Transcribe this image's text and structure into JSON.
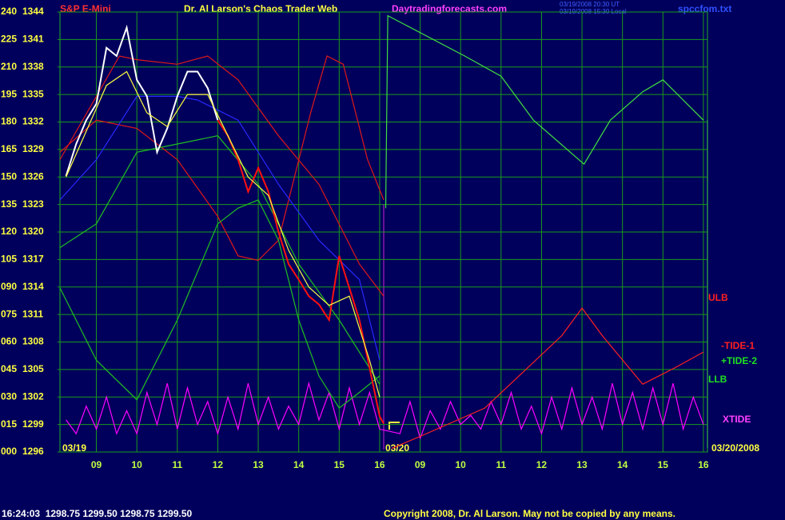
{
  "chart_data": {
    "type": "line",
    "symbol": "S&P E-Mini",
    "title": "Dr. Al Larson's Chaos Trader Web",
    "website": "Daytradingforecasts.com",
    "timestamps": [
      "03/19/2008 20:30 UT",
      "03/19/2008 15:30 Local"
    ],
    "filename": "spccfom.txt",
    "date_labels": [
      "03/19",
      "03/20",
      "03/20/2008"
    ],
    "quote": "16:24:03  1298.75 1299.50 1298.75 1299.50",
    "copyright": "Copyright 2008, Dr. Al Larson. May not be copied by any means.",
    "annotations": [
      {
        "text": "ULB",
        "color": "#ff2020"
      },
      {
        "text": "-TIDE-1",
        "color": "#ff2020"
      },
      {
        "text": "+TIDE-2",
        "color": "#20e020"
      },
      {
        "text": "LLB",
        "color": "#20e020"
      },
      {
        "text": "XTIDE",
        "color": "#ff40ff"
      }
    ],
    "xlim": [
      8.1,
      24.1
    ],
    "xticks": [
      {
        "value": 9,
        "label": "09"
      },
      10,
      11,
      12,
      13,
      14,
      15,
      16,
      {
        "value": 17,
        "label": "09"
      },
      {
        "value": 18,
        "label": "10"
      },
      {
        "value": 19,
        "label": "11"
      },
      {
        "value": 20,
        "label": "12"
      },
      {
        "value": 21,
        "label": "13"
      },
      {
        "value": 22,
        "label": "14"
      },
      {
        "value": 23,
        "label": "15"
      },
      {
        "value": 24,
        "label": "16"
      }
    ],
    "ylim": [
      1296,
      1344
    ],
    "yticks": [
      1296,
      1299,
      1302,
      1305,
      1308,
      1311,
      1314,
      1317,
      1320,
      1323,
      1326,
      1329,
      1332,
      1335,
      1338,
      1341,
      1344
    ],
    "y2lim": [
      0,
      240
    ],
    "y2ticks": [
      {
        "value": 0,
        "label": "000"
      },
      {
        "value": 15,
        "label": "015"
      },
      {
        "value": 30,
        "label": "030"
      },
      {
        "value": 45,
        "label": "045"
      },
      {
        "value": 60,
        "label": "060"
      },
      {
        "value": 75,
        "label": "075"
      },
      {
        "value": 90,
        "label": "090"
      },
      105,
      120,
      135,
      150,
      165,
      180,
      195,
      210,
      225,
      240
    ],
    "grid": true,
    "series": [
      {
        "color": "#ff00ff",
        "x": [
          8.25,
          8.5,
          8.75,
          9,
          9.25,
          9.5,
          9.75,
          10,
          10.25,
          10.5,
          10.75,
          11,
          11.25,
          11.5,
          11.75,
          12,
          12.25,
          12.5,
          12.75,
          13,
          13.25,
          13.5,
          13.75,
          14,
          14.25,
          14.5,
          14.75,
          15,
          15.25,
          15.5,
          15.75,
          16,
          16.5,
          16.75,
          17,
          17.25,
          17.5,
          17.75,
          18,
          18.25,
          18.5,
          18.75,
          19,
          19.25,
          19.5,
          19.75,
          20,
          20.25,
          20.5,
          20.75,
          21,
          21.25,
          21.5,
          21.75,
          22,
          22.25,
          22.5,
          22.75,
          23,
          23.25,
          23.5,
          23.75,
          24
        ],
        "values": [
          1299.5,
          1298,
          1301,
          1298.5,
          1302,
          1298,
          1300.5,
          1298,
          1302.5,
          1299,
          1303.5,
          1298.5,
          1303,
          1299,
          1301.5,
          1298,
          1302,
          1298.5,
          1303.5,
          1299,
          1302,
          1298.5,
          1301,
          1299,
          1303.5,
          1299.5,
          1302.5,
          1298.5,
          1303,
          1299,
          1302.5,
          1298.5,
          1298,
          1301.5,
          1297.5,
          1300.5,
          1298.5,
          1301.5,
          1299,
          1300,
          1298.5,
          1301.5,
          1299,
          1302.5,
          1298.5,
          1301,
          1298,
          1302,
          1298.5,
          1303,
          1299,
          1302,
          1298.5,
          1303.5,
          1299,
          1302.5,
          1298.5,
          1303,
          1299,
          1303.5,
          1298.5,
          1302,
          1299
        ]
      },
      {
        "color": "#e01818",
        "x": [
          8.1,
          9,
          9.57,
          10,
          11,
          11.75,
          12.5,
          13.5,
          14.5,
          15.5,
          16.1
        ],
        "values": [
          1327.9,
          1334.8,
          1339.2,
          1338.8,
          1338.3,
          1339.2,
          1336.6,
          1330.5,
          1325.2,
          1316.5,
          1313.0
        ]
      },
      {
        "color": "#e01818",
        "x": [
          8.1,
          9,
          10,
          11,
          12,
          12.5,
          13,
          13.5,
          14.3,
          14.7,
          15.1,
          15.7,
          16.1
        ],
        "values": [
          1328.7,
          1332.2,
          1331.3,
          1327.9,
          1321.7,
          1317.4,
          1316.9,
          1319.1,
          1333.1,
          1339.2,
          1338.3,
          1327.9,
          1323.5
        ]
      },
      {
        "color": "#20c020",
        "x": [
          8.1,
          9,
          10,
          11,
          12,
          13,
          14,
          15,
          16
        ],
        "values": [
          1318.3,
          1320.9,
          1328.7,
          1329.6,
          1330.5,
          1325.2,
          1316.5,
          1310.4,
          1303.4
        ]
      },
      {
        "color": "#20c020",
        "x": [
          8.1,
          9,
          10,
          11,
          12,
          12.5,
          13,
          13.5,
          14,
          14.5,
          15,
          15.5,
          16
        ],
        "values": [
          1313.9,
          1306.0,
          1301.7,
          1310.4,
          1320.9,
          1322.6,
          1323.5,
          1319.1,
          1310.4,
          1304.3,
          1300.8,
          1302.5,
          1304.3
        ]
      },
      {
        "color": "#2828ff",
        "x": [
          8.1,
          9,
          10,
          11,
          11.5,
          12.5,
          13.5,
          14.5,
          15.5,
          16
        ],
        "values": [
          1323.5,
          1327.9,
          1334.8,
          1334.8,
          1334.4,
          1332.2,
          1325.2,
          1319.1,
          1314.8,
          1306.0
        ]
      },
      {
        "color": "#ffffff",
        "x": [
          8.25,
          8.5,
          8.75,
          9,
          9.25,
          9.5,
          9.75,
          10,
          10.25,
          10.5,
          10.75,
          11,
          11.25,
          11.5,
          11.75,
          12
        ],
        "values": [
          1326.1,
          1329.6,
          1332.2,
          1334.0,
          1340.1,
          1339.2,
          1342.3,
          1336.6,
          1334.8,
          1328.7,
          1331.3,
          1334.8,
          1337.5,
          1337.5,
          1335.7,
          1332.2
        ]
      },
      {
        "color": "#ff1010",
        "x": [
          12,
          12.25,
          12.5,
          12.75,
          13,
          13.25,
          13.5,
          13.75,
          14,
          14.25,
          14.5,
          14.75,
          15,
          15.25,
          15.5,
          15.75,
          16,
          16.1
        ],
        "values": [
          1332.2,
          1330.5,
          1327.9,
          1324.4,
          1327.0,
          1324.4,
          1320.0,
          1316.5,
          1314.8,
          1313.0,
          1312.1,
          1310.4,
          1317.4,
          1313.9,
          1310.4,
          1305.2,
          1299.9,
          1299.1
        ]
      },
      {
        "color": "#ffff40",
        "x": [
          8.25,
          8.75,
          9.25,
          9.75,
          10.25,
          10.75,
          11.25,
          11.75,
          12.25,
          12.75,
          13.25,
          13.75,
          14.25,
          14.75,
          15.25,
          15.75,
          16
        ],
        "values": [
          1326,
          1331,
          1336,
          1337.5,
          1333,
          1331.5,
          1335,
          1335,
          1330.5,
          1326,
          1324,
          1318,
          1314,
          1312,
          1313,
          1306,
          1302
        ]
      },
      {
        "color": "#40e040",
        "x": [
          16.15,
          16.2,
          18.1,
          19,
          19.8,
          21.05,
          21.7,
          22.5,
          23,
          23.5,
          24
        ],
        "values": [
          1322.6,
          1343.6,
          1339.2,
          1337.0,
          1332.2,
          1327.4,
          1332.2,
          1335.3,
          1336.6,
          1334.4,
          1332.2
        ]
      },
      {
        "color": "#ff2020",
        "x": [
          16.3,
          17,
          18.6,
          20.5,
          21,
          21.5,
          22.5,
          23.3,
          24
        ],
        "values": [
          1296.4,
          1297.7,
          1300.8,
          1308.7,
          1311.7,
          1308.7,
          1303.4,
          1305.2,
          1306.9
        ]
      }
    ]
  }
}
